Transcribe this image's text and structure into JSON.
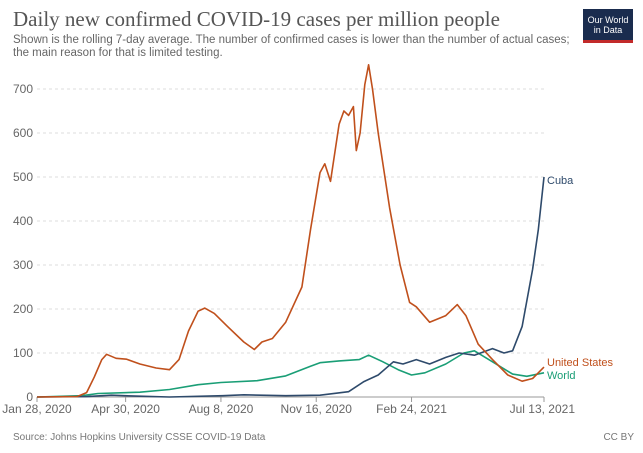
{
  "header": {
    "title": "Daily new confirmed COVID-19 cases per million people",
    "subtitle": "Shown is the rolling 7-day average. The number of confirmed cases is lower than the number of actual cases; the main reason for that is limited testing.",
    "logo_line1": "Our World",
    "logo_line2": "in Data"
  },
  "footer": {
    "source": "Source: Johns Hopkins University CSSE COVID-19 Data",
    "license": "CC BY"
  },
  "colors": {
    "united_states": "#c0501c",
    "world": "#1a9e76",
    "cuba": "#2e4a6b",
    "grid": "#dddddd",
    "text": "#666666"
  },
  "chart_data": {
    "type": "line",
    "title": "Daily new confirmed COVID-19 cases per million people",
    "subtitle": "Shown is the rolling 7-day average. The number of confirmed cases is lower than the number of actual cases; the main reason for that is limited testing.",
    "xlabel": "",
    "ylabel": "",
    "x_ticks": [
      "Jan 28, 2020",
      "Apr 30, 2020",
      "Aug 8, 2020",
      "Nov 16, 2020",
      "Feb 24, 2021",
      "Jul 13, 2021"
    ],
    "xlim": [
      "2020-01-28",
      "2021-07-13"
    ],
    "y_ticks": [
      0,
      100,
      200,
      300,
      400,
      500,
      600,
      700
    ],
    "ylim": [
      0,
      760
    ],
    "grid": "horizontal dashed",
    "legend": "labels at line ends",
    "series": [
      {
        "name": "United States",
        "color": "#c0501c",
        "points": [
          [
            "2020-01-28",
            0
          ],
          [
            "2020-03-10",
            1
          ],
          [
            "2020-03-20",
            10
          ],
          [
            "2020-03-28",
            45
          ],
          [
            "2020-04-05",
            85
          ],
          [
            "2020-04-10",
            97
          ],
          [
            "2020-04-20",
            88
          ],
          [
            "2020-05-01",
            86
          ],
          [
            "2020-05-15",
            75
          ],
          [
            "2020-06-01",
            66
          ],
          [
            "2020-06-15",
            62
          ],
          [
            "2020-06-25",
            85
          ],
          [
            "2020-07-05",
            150
          ],
          [
            "2020-07-15",
            195
          ],
          [
            "2020-07-22",
            202
          ],
          [
            "2020-08-01",
            190
          ],
          [
            "2020-08-15",
            160
          ],
          [
            "2020-09-01",
            125
          ],
          [
            "2020-09-12",
            108
          ],
          [
            "2020-09-20",
            125
          ],
          [
            "2020-10-01",
            133
          ],
          [
            "2020-10-15",
            170
          ],
          [
            "2020-11-01",
            250
          ],
          [
            "2020-11-10",
            380
          ],
          [
            "2020-11-20",
            510
          ],
          [
            "2020-11-25",
            530
          ],
          [
            "2020-12-01",
            490
          ],
          [
            "2020-12-10",
            620
          ],
          [
            "2020-12-15",
            650
          ],
          [
            "2020-12-20",
            640
          ],
          [
            "2020-12-25",
            660
          ],
          [
            "2020-12-28",
            560
          ],
          [
            "2021-01-01",
            600
          ],
          [
            "2021-01-06",
            710
          ],
          [
            "2021-01-10",
            755
          ],
          [
            "2021-01-14",
            700
          ],
          [
            "2021-01-20",
            600
          ],
          [
            "2021-02-01",
            430
          ],
          [
            "2021-02-12",
            300
          ],
          [
            "2021-02-22",
            215
          ],
          [
            "2021-03-01",
            205
          ],
          [
            "2021-03-15",
            170
          ],
          [
            "2021-04-01",
            185
          ],
          [
            "2021-04-13",
            210
          ],
          [
            "2021-04-22",
            185
          ],
          [
            "2021-05-05",
            120
          ],
          [
            "2021-05-20",
            85
          ],
          [
            "2021-06-05",
            50
          ],
          [
            "2021-06-20",
            36
          ],
          [
            "2021-07-01",
            42
          ],
          [
            "2021-07-07",
            55
          ],
          [
            "2021-07-13",
            68
          ]
        ]
      },
      {
        "name": "World",
        "color": "#1a9e76",
        "points": [
          [
            "2020-01-28",
            0
          ],
          [
            "2020-03-15",
            3
          ],
          [
            "2020-04-01",
            8
          ],
          [
            "2020-05-15",
            11
          ],
          [
            "2020-06-15",
            17
          ],
          [
            "2020-07-15",
            28
          ],
          [
            "2020-08-08",
            33
          ],
          [
            "2020-09-15",
            37
          ],
          [
            "2020-10-15",
            48
          ],
          [
            "2020-11-10",
            70
          ],
          [
            "2020-11-20",
            78
          ],
          [
            "2020-12-10",
            82
          ],
          [
            "2020-12-31",
            85
          ],
          [
            "2021-01-10",
            95
          ],
          [
            "2021-01-25",
            80
          ],
          [
            "2021-02-10",
            62
          ],
          [
            "2021-02-24",
            50
          ],
          [
            "2021-03-10",
            55
          ],
          [
            "2021-04-01",
            75
          ],
          [
            "2021-04-20",
            100
          ],
          [
            "2021-05-01",
            105
          ],
          [
            "2021-05-20",
            80
          ],
          [
            "2021-06-10",
            52
          ],
          [
            "2021-06-25",
            47
          ],
          [
            "2021-07-13",
            55
          ]
        ]
      },
      {
        "name": "Cuba",
        "color": "#2e4a6b",
        "points": [
          [
            "2020-01-28",
            0
          ],
          [
            "2020-03-20",
            1
          ],
          [
            "2020-04-15",
            4
          ],
          [
            "2020-05-10",
            2
          ],
          [
            "2020-06-15",
            0
          ],
          [
            "2020-08-10",
            3
          ],
          [
            "2020-09-01",
            5
          ],
          [
            "2020-10-15",
            3
          ],
          [
            "2020-11-20",
            4
          ],
          [
            "2020-12-20",
            12
          ],
          [
            "2021-01-05",
            35
          ],
          [
            "2021-01-20",
            50
          ],
          [
            "2021-02-05",
            80
          ],
          [
            "2021-02-15",
            75
          ],
          [
            "2021-03-01",
            85
          ],
          [
            "2021-03-15",
            75
          ],
          [
            "2021-04-01",
            90
          ],
          [
            "2021-04-15",
            100
          ],
          [
            "2021-05-01",
            95
          ],
          [
            "2021-05-20",
            110
          ],
          [
            "2021-06-01",
            100
          ],
          [
            "2021-06-10",
            105
          ],
          [
            "2021-06-20",
            160
          ],
          [
            "2021-07-01",
            290
          ],
          [
            "2021-07-07",
            380
          ],
          [
            "2021-07-13",
            500
          ]
        ]
      }
    ]
  }
}
